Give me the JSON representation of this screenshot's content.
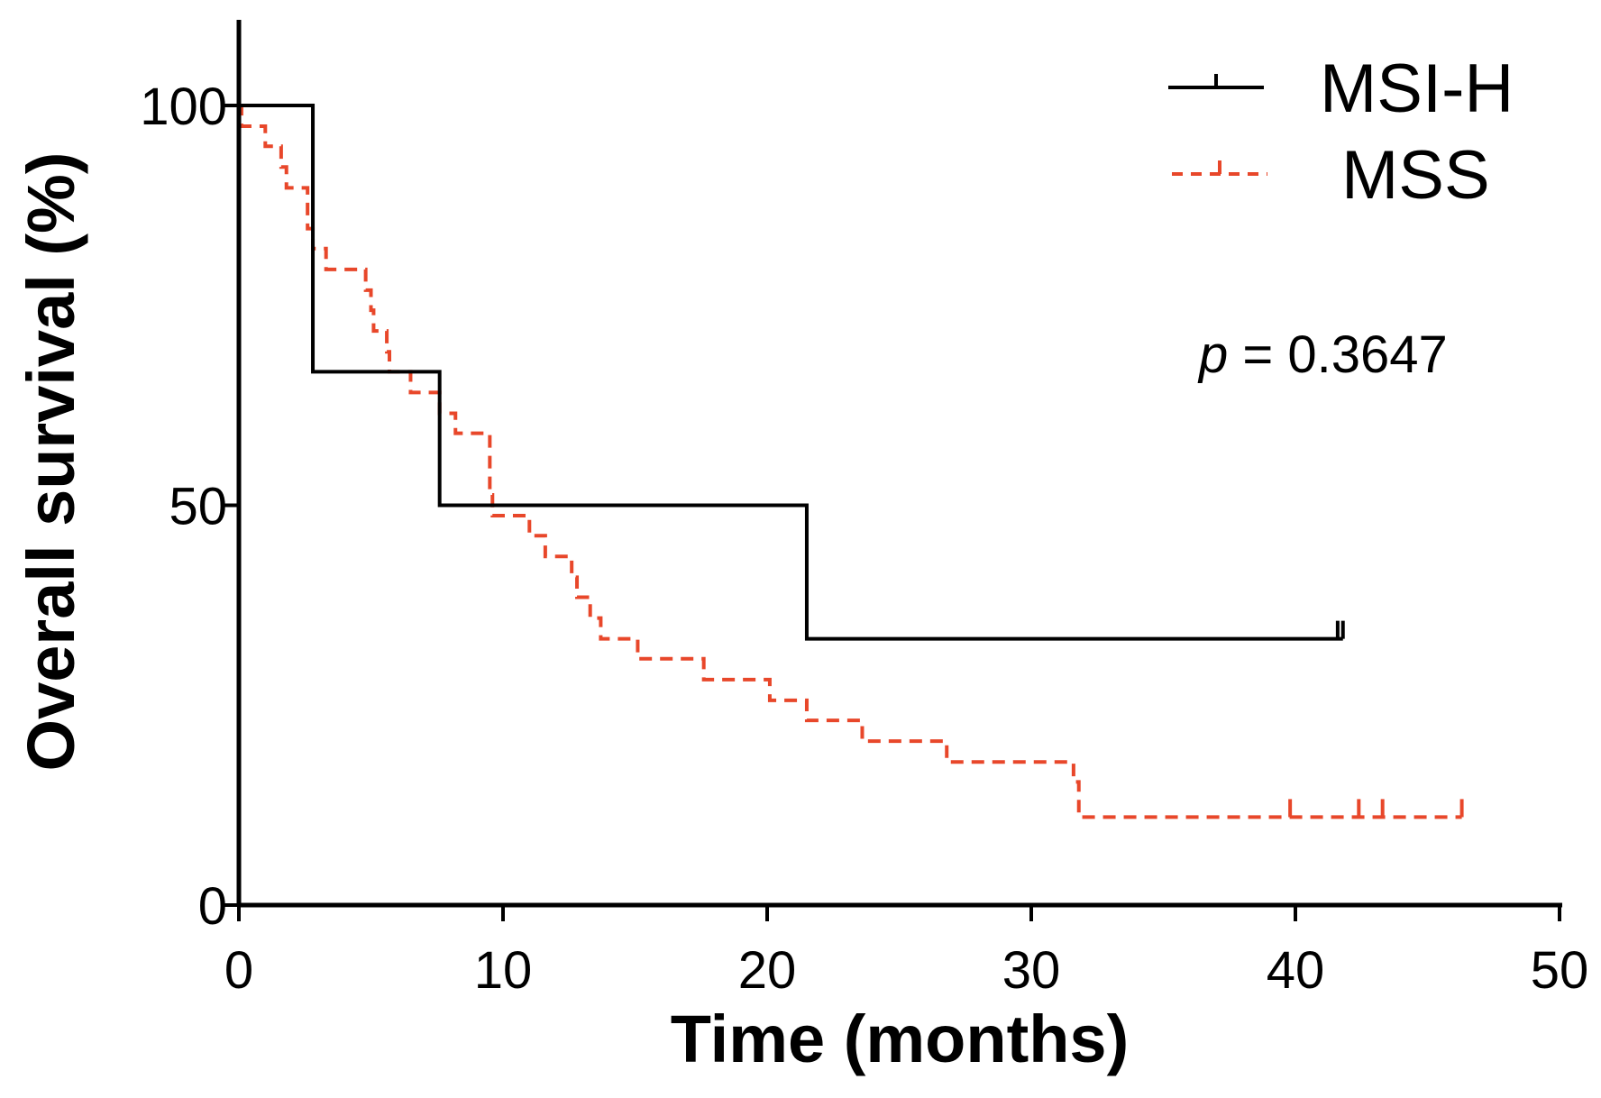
{
  "chart_data": {
    "type": "line",
    "subtype": "kaplan-meier",
    "title": "",
    "xlabel": "Time (months)",
    "ylabel": "Overall survival (%)",
    "xlim": [
      0,
      50
    ],
    "ylim": [
      0,
      100
    ],
    "xticks": [
      0,
      10,
      20,
      30,
      40,
      50
    ],
    "xtick_labels": [
      "0",
      "10",
      "20",
      "30",
      "40",
      "50"
    ],
    "yticks": [
      0,
      50,
      100
    ],
    "ytick_labels": [
      "0",
      "50",
      "100"
    ],
    "grid": false,
    "legend_position": "top-right",
    "annotation": {
      "italic": "p",
      "rest": " = 0.3647"
    },
    "series": [
      {
        "name": "MSI-H",
        "color": "#000000",
        "style": "solid",
        "steps": [
          [
            0,
            100
          ],
          [
            2.8,
            66.7
          ],
          [
            7.6,
            50
          ],
          [
            21.5,
            33.3
          ]
        ],
        "end_x": 41.8,
        "censors": [
          [
            41.6,
            33.3
          ],
          [
            41.8,
            33.3
          ]
        ]
      },
      {
        "name": "MSS",
        "color": "#E8472A",
        "style": "dashed",
        "steps": [
          [
            0,
            100
          ],
          [
            0.1,
            97.4
          ],
          [
            1.0,
            94.9
          ],
          [
            1.6,
            92.3
          ],
          [
            1.8,
            89.7
          ],
          [
            2.6,
            84.6
          ],
          [
            2.8,
            82.1
          ],
          [
            3.3,
            79.5
          ],
          [
            4.8,
            76.9
          ],
          [
            5.0,
            74.4
          ],
          [
            5.1,
            71.8
          ],
          [
            5.6,
            69.2
          ],
          [
            5.7,
            66.7
          ],
          [
            6.5,
            64.1
          ],
          [
            7.6,
            61.5
          ],
          [
            8.2,
            59.0
          ],
          [
            9.5,
            51.3
          ],
          [
            9.6,
            48.7
          ],
          [
            11.0,
            46.2
          ],
          [
            11.6,
            43.6
          ],
          [
            12.6,
            41.0
          ],
          [
            12.8,
            38.5
          ],
          [
            13.3,
            35.9
          ],
          [
            13.7,
            33.3
          ],
          [
            15.1,
            30.8
          ],
          [
            17.6,
            28.2
          ],
          [
            20.1,
            25.6
          ],
          [
            21.5,
            23.1
          ],
          [
            23.6,
            20.5
          ],
          [
            26.8,
            17.9
          ],
          [
            31.6,
            15.4
          ],
          [
            31.8,
            11.0
          ]
        ],
        "end_x": 46.3,
        "censors": [
          [
            39.8,
            11.0
          ],
          [
            42.4,
            11.0
          ],
          [
            43.3,
            11.0
          ],
          [
            46.3,
            11.0
          ]
        ]
      }
    ]
  }
}
